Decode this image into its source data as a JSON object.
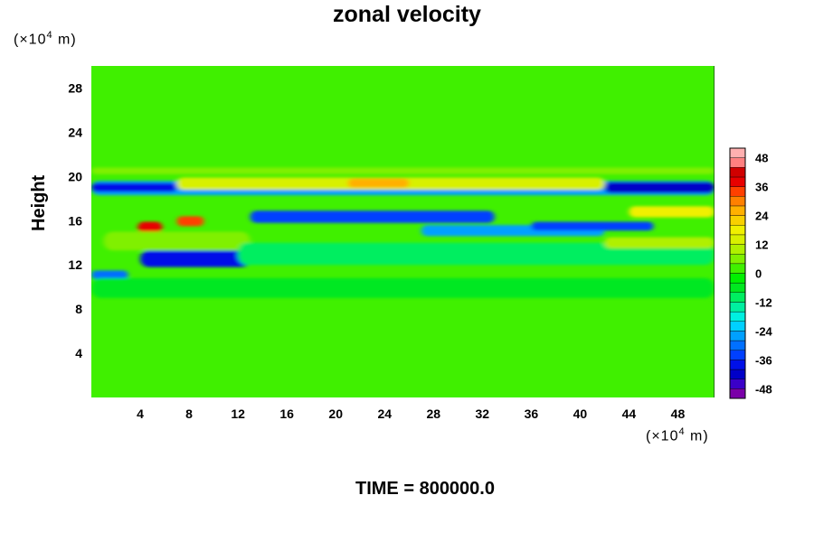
{
  "chart_data": {
    "type": "heatmap",
    "title": "zonal velocity",
    "ylabel": "Height",
    "x_unit": {
      "prefix": "(×10",
      "exp": "4",
      "suffix": " m)"
    },
    "y_unit": {
      "prefix": "(×10",
      "exp": "4",
      "suffix": " m)"
    },
    "xlim": [
      0,
      51
    ],
    "ylim": [
      0,
      30
    ],
    "x_ticks": [
      4,
      8,
      12,
      16,
      20,
      24,
      28,
      32,
      36,
      40,
      44,
      48
    ],
    "y_ticks": [
      4,
      8,
      12,
      16,
      20,
      24,
      28
    ],
    "colorbar": {
      "range": [
        -52,
        52
      ],
      "step": 4,
      "tick_labels": [
        "48",
        "36",
        "24",
        "12",
        "0",
        "-12",
        "-24",
        "-36",
        "-48"
      ],
      "colors": [
        "#7a00a8",
        "#3a00c8",
        "#0000c8",
        "#0010e8",
        "#0040ff",
        "#0070ff",
        "#00a0ff",
        "#00d0ff",
        "#00f0e0",
        "#00f0a0",
        "#00ee60",
        "#00e820",
        "#00f000",
        "#40f000",
        "#80f000",
        "#b0f000",
        "#d8f000",
        "#f0f000",
        "#f8d000",
        "#ffb000",
        "#ff8000",
        "#ff4000",
        "#e80000",
        "#d00000",
        "#ff8080",
        "#ffb0b0"
      ]
    },
    "features": [
      {
        "x0": 0,
        "x1": 51,
        "y0": 18.3,
        "y1": 19.6,
        "value": -26
      },
      {
        "x0": 0,
        "x1": 7,
        "y0": 18.6,
        "y1": 19.4,
        "value": -40
      },
      {
        "x0": 42,
        "x1": 51,
        "y0": 18.5,
        "y1": 19.5,
        "value": -42
      },
      {
        "x0": 7,
        "x1": 42,
        "y0": 18.8,
        "y1": 19.9,
        "value": 14
      },
      {
        "x0": 21,
        "x1": 26,
        "y0": 19.0,
        "y1": 19.8,
        "value": 24
      },
      {
        "x0": 13,
        "x1": 33,
        "y0": 15.8,
        "y1": 16.9,
        "value": -36
      },
      {
        "x0": 27,
        "x1": 42,
        "y0": 14.6,
        "y1": 15.6,
        "value": -28
      },
      {
        "x0": 36,
        "x1": 46,
        "y0": 15.1,
        "y1": 15.9,
        "value": -36
      },
      {
        "x0": 4,
        "x1": 13,
        "y0": 11.8,
        "y1": 13.3,
        "value": -40
      },
      {
        "x0": 0,
        "x1": 3,
        "y0": 10.7,
        "y1": 11.5,
        "value": -32
      },
      {
        "x0": 3.8,
        "x1": 5.8,
        "y0": 14.9,
        "y1": 15.9,
        "value": 36
      },
      {
        "x0": 7.0,
        "x1": 9.2,
        "y0": 15.5,
        "y1": 16.4,
        "value": 32
      },
      {
        "x0": 1,
        "x1": 13,
        "y0": 13.3,
        "y1": 15.0,
        "value": 8
      },
      {
        "x0": 44,
        "x1": 51,
        "y0": 16.3,
        "y1": 17.3,
        "value": 16
      },
      {
        "x0": 0,
        "x1": 51,
        "y0": 20.2,
        "y1": 20.8,
        "value": 6
      },
      {
        "x0": 12,
        "x1": 51,
        "y0": 12.0,
        "y1": 14.0,
        "value": -10
      },
      {
        "x0": 0,
        "x1": 51,
        "y0": 9.0,
        "y1": 10.8,
        "value": -6
      },
      {
        "x0": 42,
        "x1": 51,
        "y0": 13.5,
        "y1": 14.5,
        "value": 10
      },
      {
        "x0": 0,
        "x1": 51,
        "y0": 0,
        "y1": 8.5,
        "value": 2
      }
    ]
  },
  "footer": {
    "time_label": "TIME = 800000.0"
  }
}
